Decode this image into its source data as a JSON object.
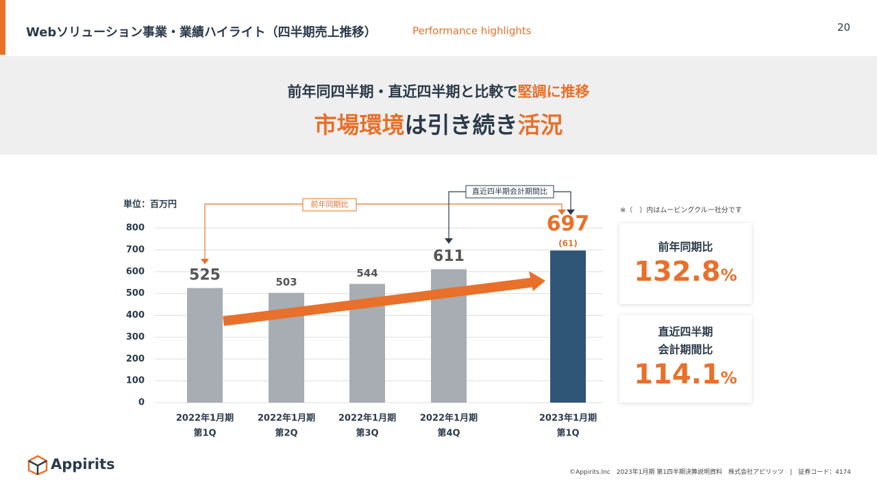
{
  "header": {
    "title": "Webソリューション事業・業績ハイライト（四半期売上推移）",
    "subtitle": "Performance highlights",
    "page": "20"
  },
  "banner": {
    "line1": [
      {
        "text": "前年同四半期・直近四半期と比較で",
        "accent": false
      },
      {
        "text": "堅調に推移",
        "accent": true
      }
    ],
    "line2": [
      {
        "text": "市場環境",
        "accent": true
      },
      {
        "text": "は引き続き",
        "accent": false
      },
      {
        "text": "活況",
        "accent": true
      }
    ]
  },
  "chart_data": {
    "type": "bar",
    "unit_label": "単位：百万円",
    "categories": [
      [
        "2022年1月期",
        "第1Q"
      ],
      [
        "2022年1月期",
        "第2Q"
      ],
      [
        "2022年1月期",
        "第3Q"
      ],
      [
        "2022年1月期",
        "第4Q"
      ],
      [
        "2023年1月期",
        "第1Q"
      ]
    ],
    "values": [
      525,
      503,
      544,
      611,
      697
    ],
    "colors": [
      "#a7adb3",
      "#a7adb3",
      "#a7adb3",
      "#a7adb3",
      "#2f5577"
    ],
    "ylim": [
      0,
      800
    ],
    "yticks": [
      0,
      100,
      200,
      300,
      400,
      500,
      600,
      700,
      800
    ],
    "grid": true,
    "annotations": {
      "sub_label": "(61)",
      "yoy_bracket": "前年同期比",
      "qoq_bracket": "直近四半期会計期間比",
      "note": "※（　）内はムービングクルー社分です"
    }
  },
  "cards": [
    {
      "label": [
        "前年同期比"
      ],
      "value": "132.8",
      "unit": "%"
    },
    {
      "label": [
        "直近四半期",
        "会計期間比"
      ],
      "value": "114.1",
      "unit": "%"
    }
  ],
  "footer": {
    "logo": "Appirits",
    "text": "©Appirits.Inc　2023年1月期 第1四半期決算説明資料　株式会社アピリッツ　|　証券コード：4174"
  }
}
